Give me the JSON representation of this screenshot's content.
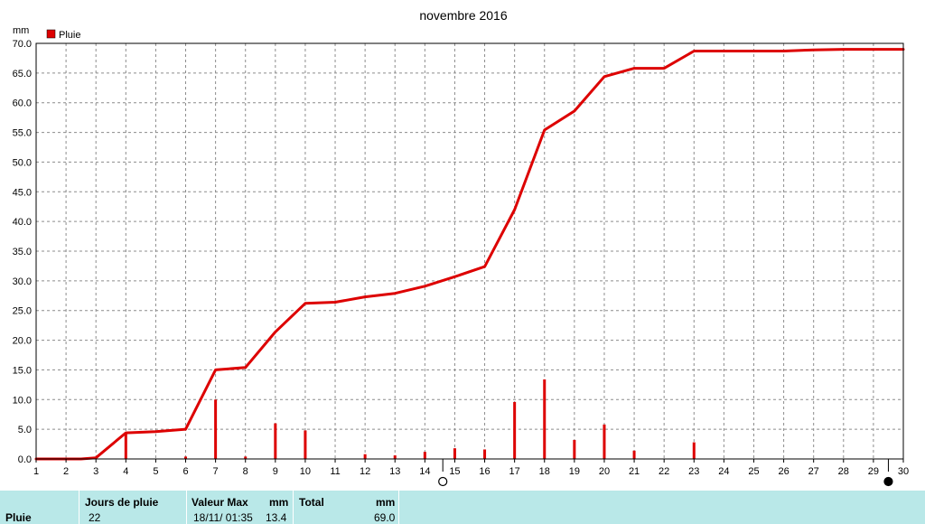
{
  "chart_data": {
    "type": "line",
    "title": "novembre 2016",
    "ylabel": "mm",
    "legend": [
      {
        "name": "Pluie",
        "color": "#dd0000"
      }
    ],
    "legend_placement": "top-left",
    "grid": true,
    "ylim": [
      0,
      70
    ],
    "y_ticks": [
      "0.0",
      "5.0",
      "10.0",
      "15.0",
      "20.0",
      "25.0",
      "30.0",
      "35.0",
      "40.0",
      "45.0",
      "50.0",
      "55.0",
      "60.0",
      "65.0",
      "70.0"
    ],
    "x_ticks": [
      "1",
      "2",
      "3",
      "4",
      "5",
      "6",
      "7",
      "8",
      "9",
      "10",
      "11",
      "12",
      "13",
      "14",
      "15",
      "16",
      "17",
      "18",
      "19",
      "20",
      "21",
      "22",
      "23",
      "24",
      "25",
      "26",
      "27",
      "28",
      "29",
      "30"
    ],
    "series": [
      {
        "kind": "cumulative-line",
        "color": "#dd0000",
        "x": [
          1,
          2,
          2.5,
          3,
          4,
          5,
          6,
          7,
          8,
          9,
          10,
          11,
          12,
          13,
          14,
          15,
          16,
          17,
          18,
          19,
          20,
          21,
          22,
          23,
          24,
          25,
          26,
          27,
          28,
          29,
          30
        ],
        "values": [
          0,
          0,
          0,
          0.2,
          4.4,
          4.6,
          5.0,
          15.0,
          15.4,
          21.4,
          26.2,
          26.4,
          27.3,
          27.9,
          29.1,
          30.7,
          32.4,
          42.0,
          55.4,
          58.6,
          64.4,
          65.8,
          65.8,
          68.7,
          68.7,
          68.7,
          68.7,
          68.9,
          69.0,
          69.0,
          69.0
        ]
      },
      {
        "kind": "daily-bars",
        "color": "#dd0000",
        "x": [
          4,
          6,
          7,
          8,
          9,
          10,
          12,
          13,
          14,
          15,
          16,
          17,
          18,
          19,
          20,
          21,
          23
        ],
        "values": [
          4.2,
          0.4,
          10.0,
          0.4,
          6.0,
          4.8,
          0.8,
          0.6,
          1.2,
          1.8,
          1.6,
          9.6,
          13.4,
          3.2,
          5.8,
          1.4,
          2.8
        ]
      }
    ],
    "moon_phases": [
      {
        "x": 14.6,
        "phase": "full"
      },
      {
        "x": 29.5,
        "phase": "new"
      }
    ]
  },
  "stats": {
    "row_label": "Pluie",
    "jours_label": "Jours de pluie",
    "jours_value": "22",
    "max_label": "Valeur Max",
    "max_unit": "mm",
    "max_date": "18/11/ 01:35",
    "max_value": "13.4",
    "total_label": "Total",
    "total_unit": "mm",
    "total_value": "69.0"
  }
}
